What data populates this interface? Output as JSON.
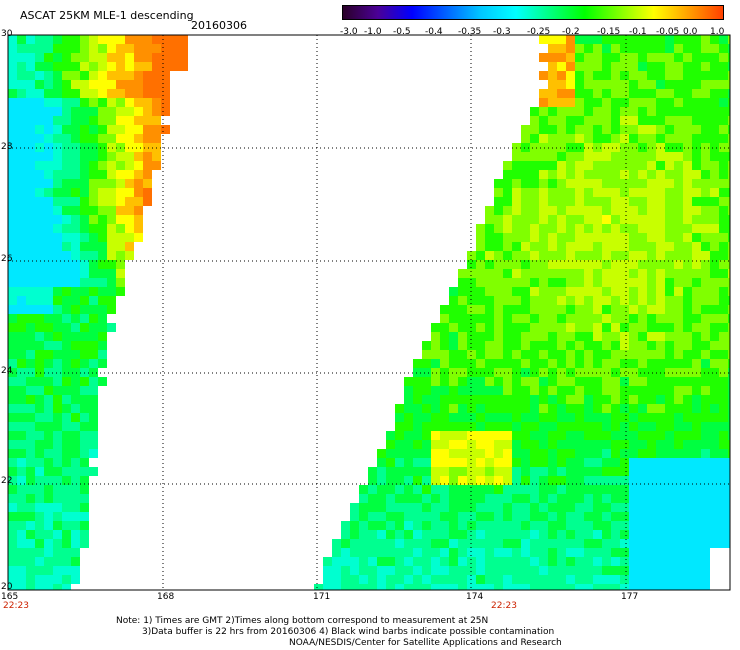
{
  "header": {
    "title": "ASCAT 25KM MLE-1 descending",
    "date": "20160306"
  },
  "colorbar": {
    "labels": [
      "-3.0",
      "-1.0",
      "-0.5",
      "-0.4",
      "-0.35",
      "-0.3",
      "-0.25",
      "-0.2",
      "-0.15",
      "-0.1",
      "-0.05",
      "0.0",
      "1.0"
    ],
    "colors": [
      "#2a0028",
      "#4b0096",
      "#0000ff",
      "#0064ff",
      "#00c8ff",
      "#00ffff",
      "#00ff80",
      "#00ff00",
      "#80ff00",
      "#ffff00",
      "#ffa000",
      "#ff4000"
    ]
  },
  "map": {
    "lon_labels": [
      "165",
      "168",
      "171",
      "174",
      "177"
    ],
    "lat_labels": [
      "30",
      "28",
      "26",
      "24",
      "22",
      "20"
    ],
    "time_labels": [
      "22:23",
      "22:23"
    ],
    "lon_range": [
      165,
      178.8
    ],
    "lat_range": [
      20,
      30
    ]
  },
  "notes": {
    "line1": "Note: 1) Times are GMT 2)Times along bottom correspond to measurement at 25N",
    "line2": "3)Data buffer is 22 hrs from 20160306 4) Black wind barbs indicate possible contamination",
    "line3": "NOAA/NESDIS/Center for Satellite Applications and Research"
  }
}
